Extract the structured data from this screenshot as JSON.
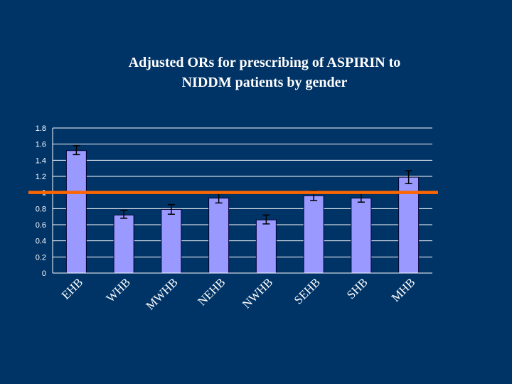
{
  "chart_data": {
    "type": "bar",
    "title_lines": [
      "Adjusted ORs for prescribing of ASPIRIN to",
      "NIDDM patients by gender"
    ],
    "categories": [
      "EHB",
      "WHB",
      "MWHB",
      "NEHB",
      "NWHB",
      "SEHB",
      "SHB",
      "MHB"
    ],
    "values": [
      1.52,
      0.72,
      0.79,
      0.93,
      0.66,
      0.96,
      0.93,
      1.19
    ],
    "error_low": [
      1.47,
      0.68,
      0.73,
      0.87,
      0.61,
      0.9,
      0.88,
      1.11
    ],
    "error_high": [
      1.58,
      0.78,
      0.85,
      0.99,
      0.72,
      1.02,
      0.99,
      1.27
    ],
    "reference_line": 1,
    "ylim": [
      0,
      1.8
    ],
    "yticks": [
      0,
      0.2,
      0.4,
      0.6,
      0.8,
      1,
      1.2,
      1.4,
      1.6,
      1.8
    ],
    "ytick_labels": [
      "0",
      "0.2",
      "0.4",
      "0.6",
      "0.8",
      "1",
      "1.2",
      "1.4",
      "1.6",
      "1.8"
    ],
    "grid": true,
    "xlabel": "",
    "ylabel": "",
    "colors": {
      "background": "#003366",
      "bar_fill": "#9999ff",
      "bar_stroke": "#000033",
      "gridline": "#ffffff",
      "reference_line": "#ff6600",
      "text": "#ffffff",
      "error_bar": "#000000"
    }
  }
}
